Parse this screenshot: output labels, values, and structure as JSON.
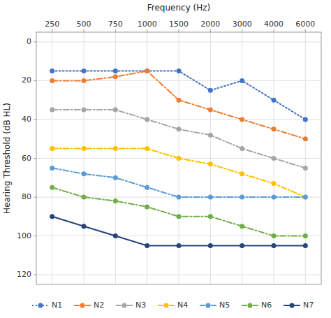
{
  "chart_data": {
    "type": "line",
    "xlabel": "Frequency (Hz)",
    "ylabel": "Hearing Threshold (dB HL)",
    "categories": [
      "250",
      "500",
      "750",
      "1000",
      "1500",
      "2000",
      "3000",
      "4000",
      "6000"
    ],
    "ylim": [
      125,
      -5
    ],
    "yticks": [
      0,
      20,
      40,
      60,
      80,
      100,
      120
    ],
    "grid": true,
    "legend": "bottom",
    "series": [
      {
        "name": "N1",
        "color": "#4472C4",
        "line_style": "dotted",
        "marker": "circle",
        "values": [
          15,
          15,
          15,
          15,
          15,
          25,
          20,
          30,
          40
        ]
      },
      {
        "name": "N2",
        "color": "#ED7D31",
        "line_style": "dashdot",
        "marker": "circle",
        "values": [
          20,
          20,
          18,
          15,
          30,
          35,
          40,
          45,
          50
        ]
      },
      {
        "name": "N3",
        "color": "#A5A5A5",
        "line_style": "dashdot",
        "marker": "circle",
        "values": [
          35,
          35,
          35,
          40,
          45,
          48,
          55,
          60,
          65
        ]
      },
      {
        "name": "N4",
        "color": "#FFC000",
        "line_style": "dashdot",
        "marker": "circle",
        "values": [
          55,
          55,
          55,
          55,
          60,
          63,
          68,
          73,
          80
        ]
      },
      {
        "name": "N5",
        "color": "#5B9BD5",
        "line_style": "dashdot",
        "marker": "circle",
        "values": [
          65,
          68,
          70,
          75,
          80,
          80,
          80,
          80,
          80
        ]
      },
      {
        "name": "N6",
        "color": "#70AD47",
        "line_style": "dashdot",
        "marker": "circle",
        "values": [
          75,
          80,
          82,
          85,
          90,
          90,
          95,
          100,
          100
        ]
      },
      {
        "name": "N7",
        "color": "#264478",
        "line_style": "solid",
        "marker": "circle",
        "values": [
          90,
          95,
          100,
          105,
          105,
          105,
          105,
          105,
          105
        ]
      }
    ]
  }
}
